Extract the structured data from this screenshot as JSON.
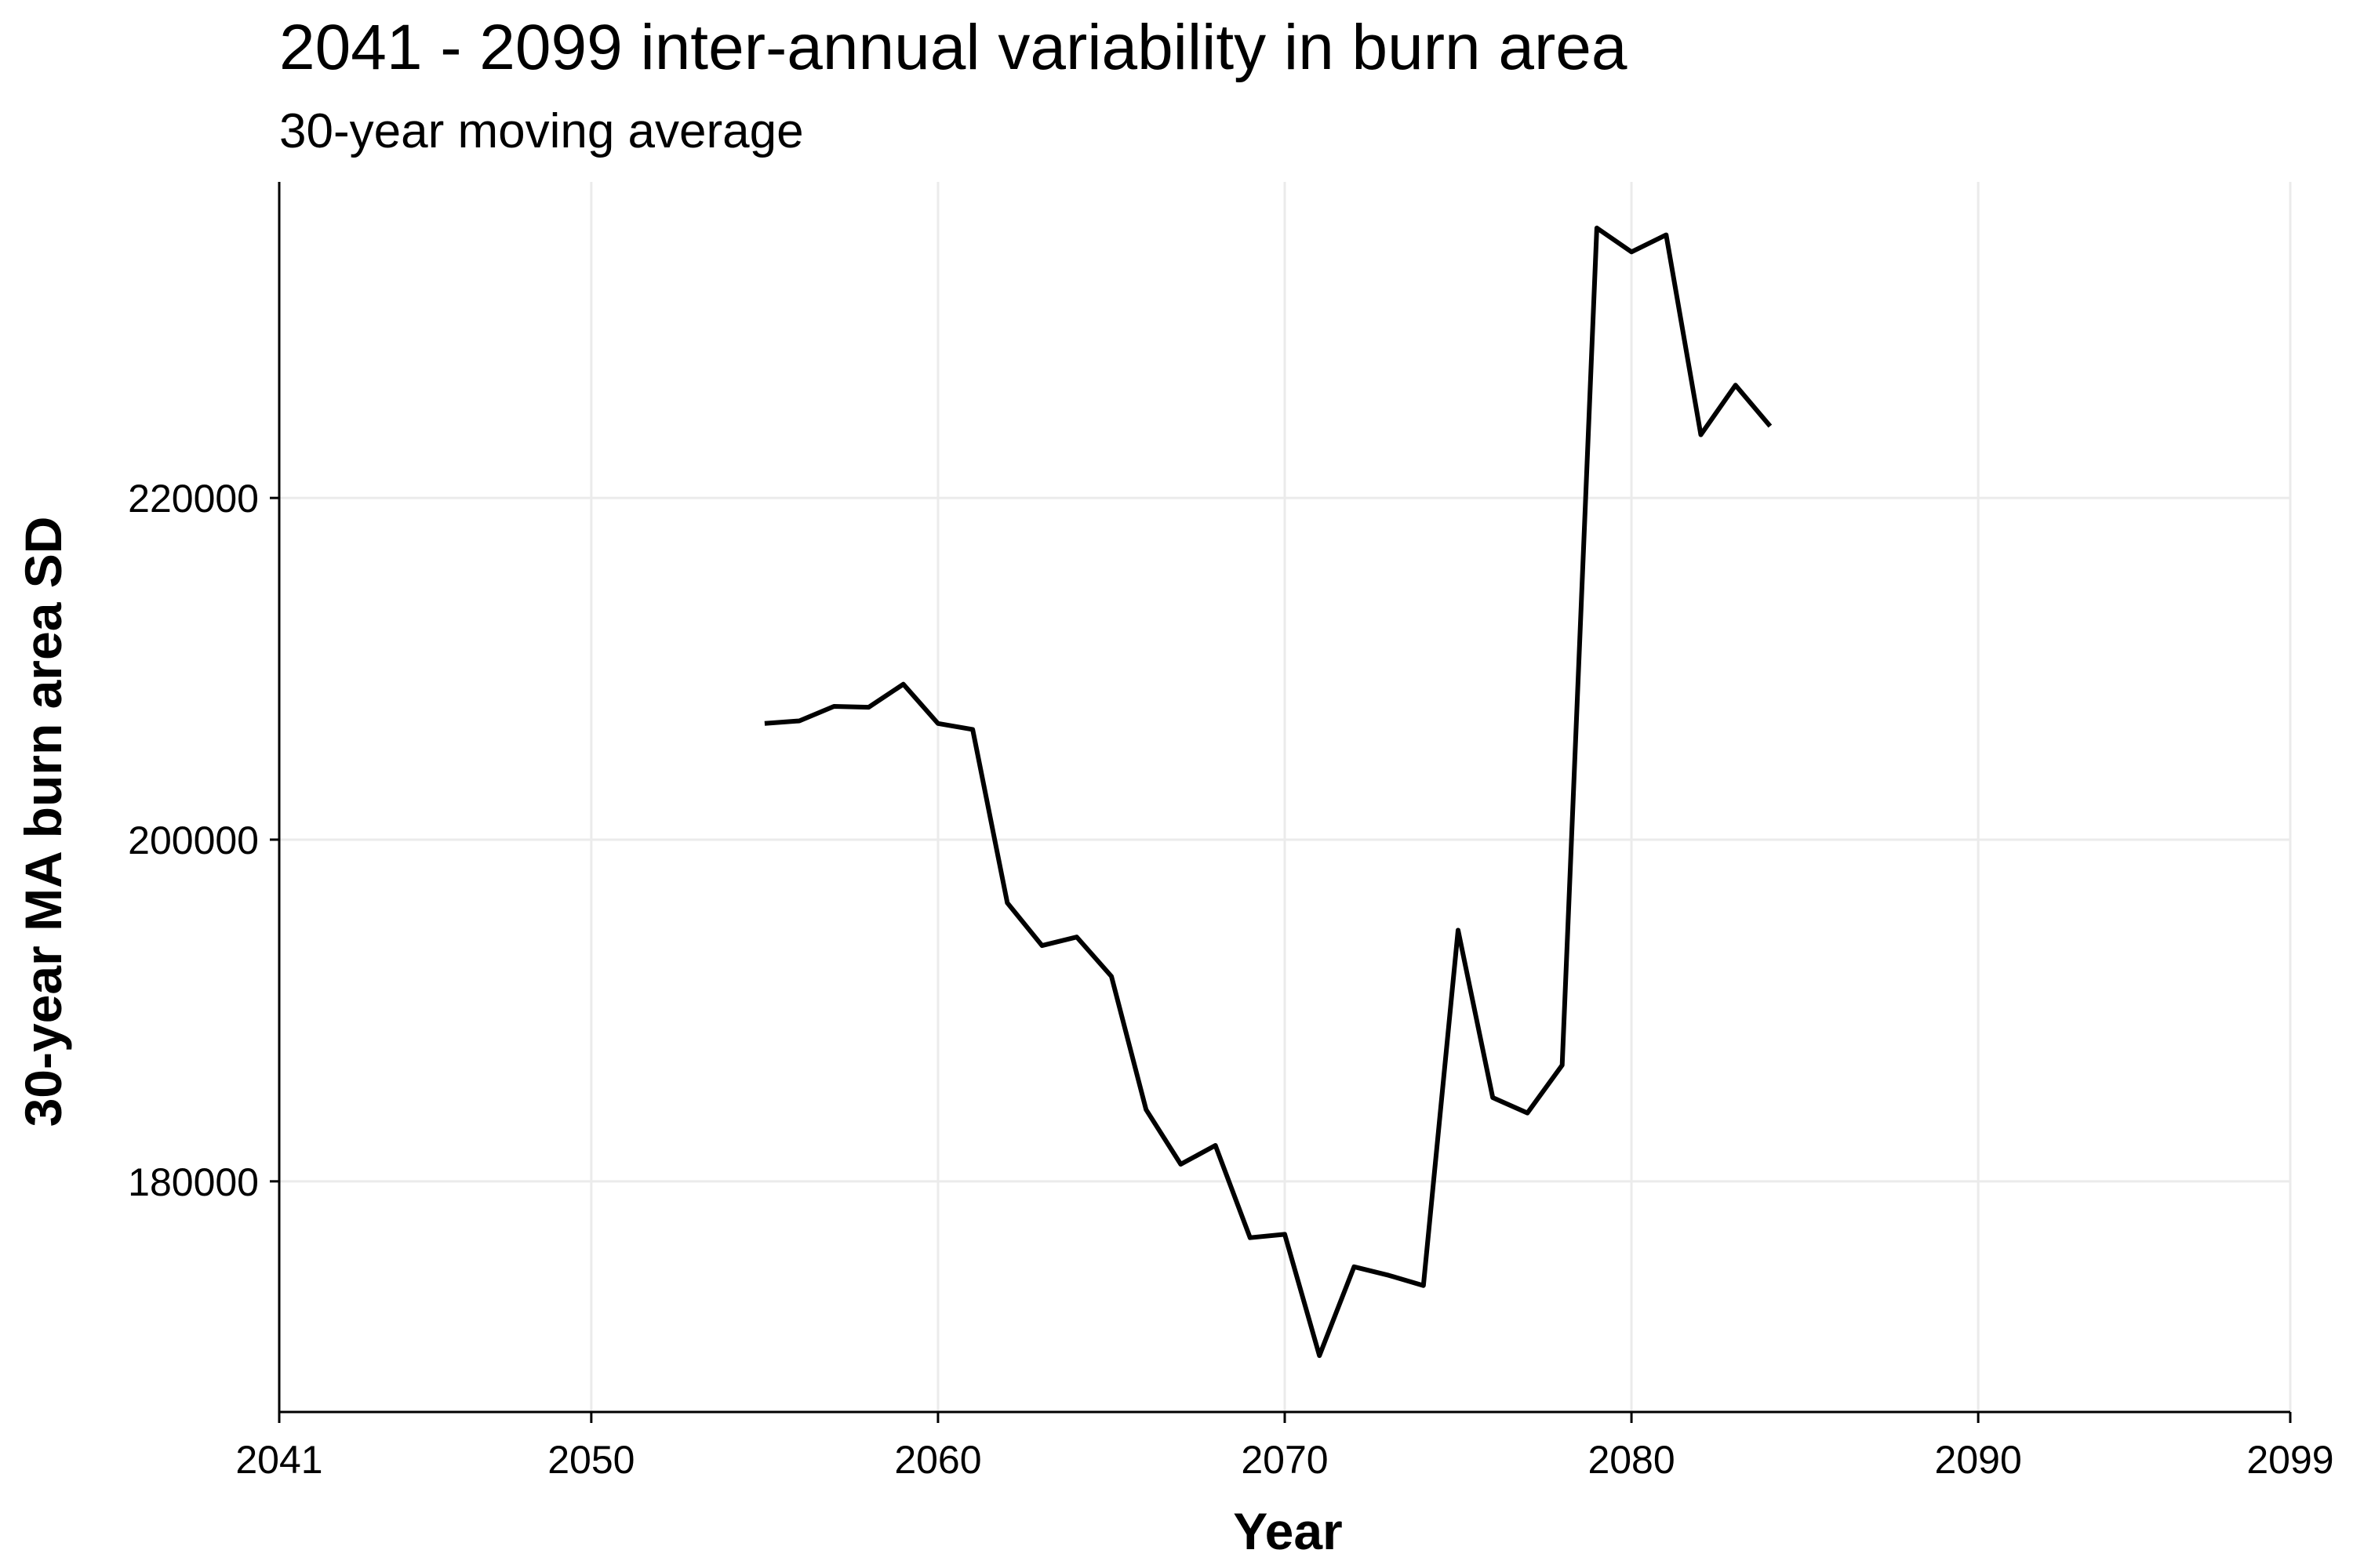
{
  "chart_data": {
    "type": "line",
    "title": "2041 - 2099 inter-annual variability in burn area",
    "subtitle": "30-year moving average",
    "xlabel": "Year",
    "ylabel": "30-year MA burn area SD",
    "xlim": [
      2041,
      2099
    ],
    "ylim": [
      166500,
      238500
    ],
    "x_ticks": [
      2041,
      2050,
      2060,
      2070,
      2080,
      2090,
      2099
    ],
    "y_ticks": [
      180000,
      200000,
      220000
    ],
    "grid": true,
    "line_color": "#000000",
    "grid_color": "#ebebeb",
    "series": [
      {
        "x": [
          2055,
          2056,
          2057,
          2058,
          2059,
          2060,
          2061,
          2062,
          2063,
          2064,
          2065,
          2066,
          2067,
          2068,
          2069,
          2070,
          2071,
          2072,
          2073,
          2074,
          2075,
          2076,
          2077,
          2078,
          2079,
          2080,
          2081,
          2082,
          2083,
          2084
        ],
        "values": [
          206800,
          206950,
          207800,
          207750,
          209100,
          206800,
          206450,
          196300,
          193800,
          194300,
          192000,
          184200,
          181000,
          182100,
          176700,
          176900,
          169800,
          175000,
          174500,
          173900,
          194700,
          184900,
          184000,
          186800,
          235800,
          234400,
          235400,
          223700,
          226600,
          224200
        ]
      }
    ]
  }
}
